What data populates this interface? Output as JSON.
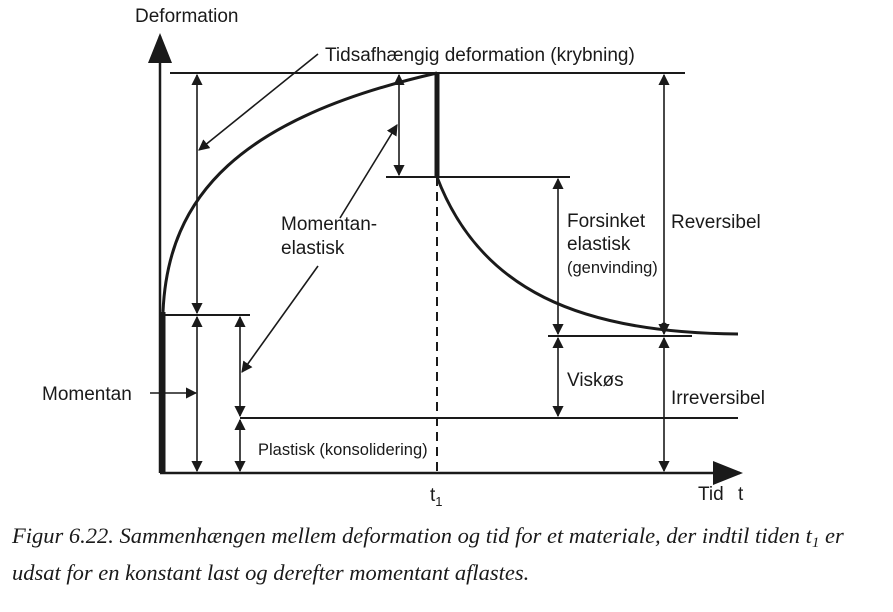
{
  "labels": {
    "y_axis": "Deformation",
    "x_axis_tid": "Tid",
    "x_axis_t": "t",
    "t1_t": "t",
    "t1_sub": "1",
    "krybning": "Tidsafhængig deformation (krybning)",
    "momentan_elastisk_1": "Momentan-",
    "momentan_elastisk_2": "elastisk",
    "forsinket_1": "Forsinket",
    "forsinket_2": "elastisk",
    "forsinket_3": "(genvinding)",
    "reversibel": "Reversibel",
    "viskos": "Viskøs",
    "irreversibel": "Irreversibel",
    "momentan": "Momentan",
    "plastisk": "Plastisk (konsolidering)"
  },
  "caption": {
    "part1": "Figur 6.22. Sammenhængen mellem deformation og tid for et materiale, der indtil tiden t",
    "sub": "1",
    "part2": " er udsat for en konstant last og derefter momentant aflastes."
  }
}
